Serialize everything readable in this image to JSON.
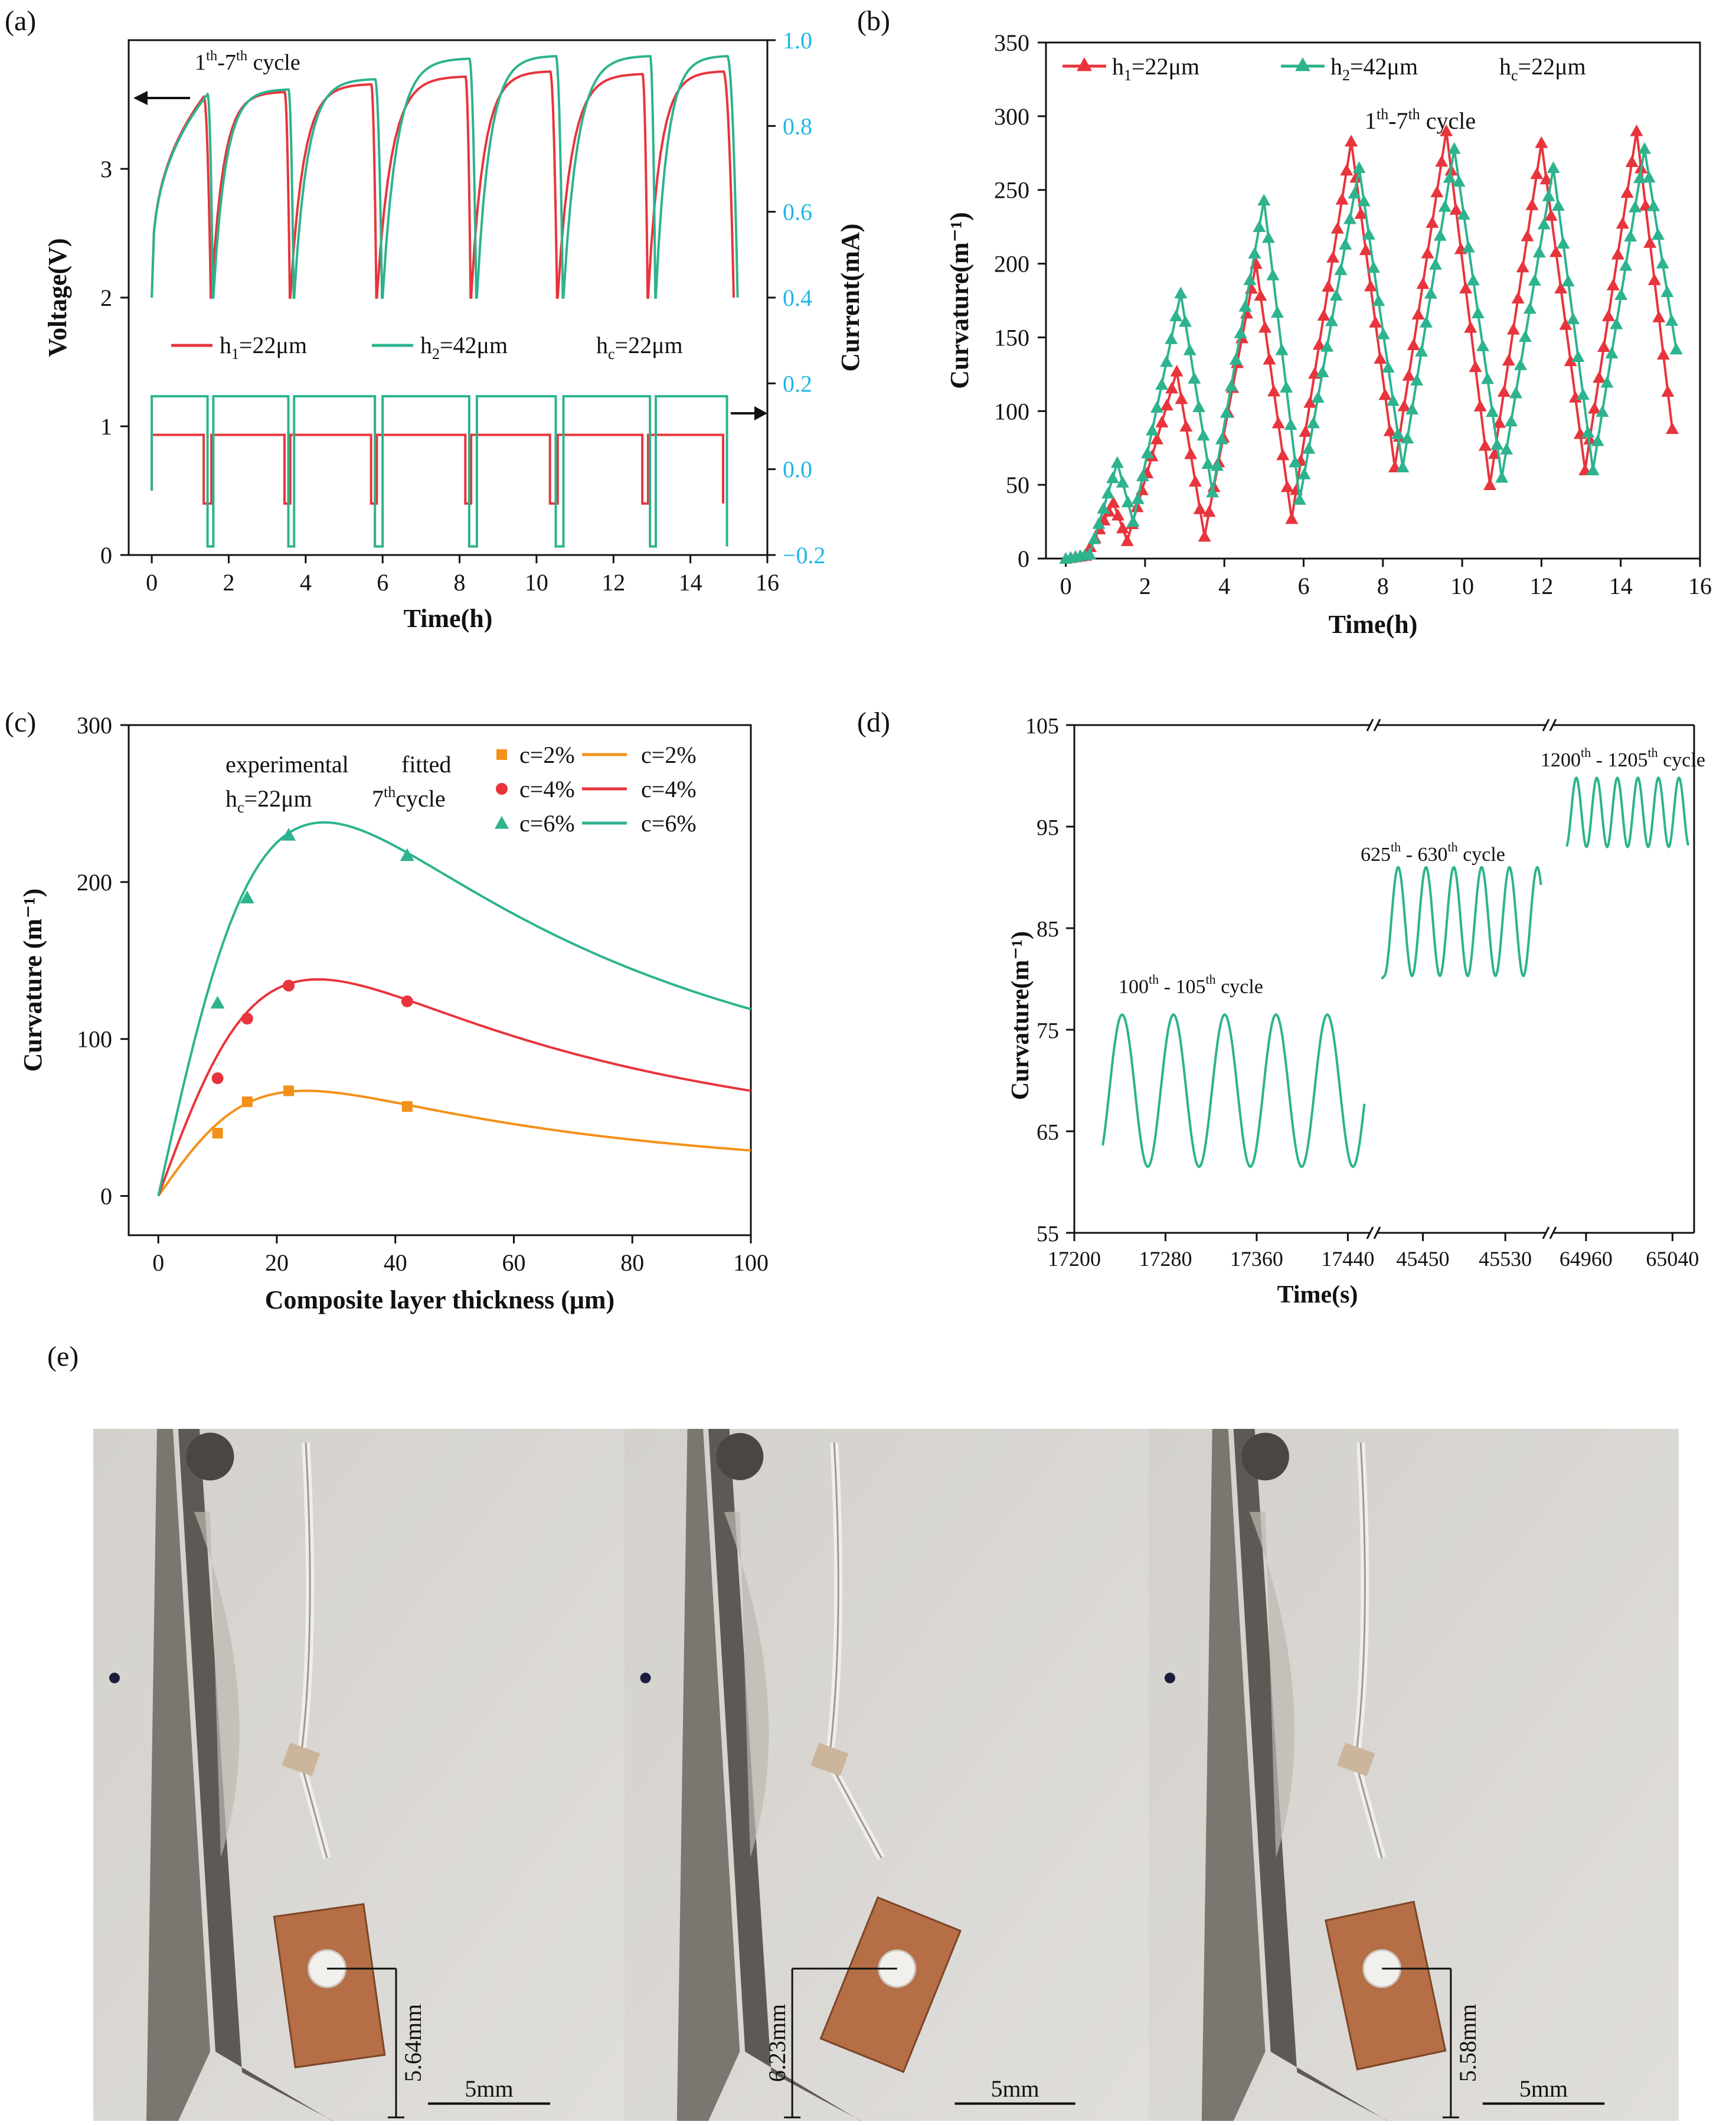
{
  "panel_labels": {
    "a": "(a)",
    "b": "(b)",
    "c": "(c)",
    "d": "(d)",
    "e": "(e)"
  },
  "colors": {
    "red": "#e8343c",
    "teal": "#2db38e",
    "orange": "#f39019",
    "cyan": "#1fb6e6",
    "black": "#111111",
    "photo_bg": "#d9d6d1",
    "copper": "#b56e45"
  },
  "chart_data": [
    {
      "id": "a",
      "type": "line",
      "xlabel": "Time(h)",
      "ylabel": "Voltage(V)",
      "y2label": "Current(mA)",
      "xlim": [
        -0.6,
        16
      ],
      "ylim": [
        0,
        4
      ],
      "y2lim": [
        -0.2,
        1.0
      ],
      "xticks": [
        0,
        2,
        4,
        6,
        8,
        10,
        12,
        14,
        16
      ],
      "yticks": [
        0,
        1,
        2,
        3
      ],
      "y2ticks": [
        "−0.2",
        "0.0",
        "0.2",
        "0.4",
        "0.6",
        "0.8",
        "1.0"
      ],
      "annotation": {
        "base": "1",
        "sup1": "th",
        "mid": "-7",
        "sup2": "th",
        "tail": " cycle"
      },
      "legend": [
        {
          "name": "h",
          "sub": "1",
          "rest": "=22μm",
          "color": "red"
        },
        {
          "name": "h",
          "sub": "2",
          "rest": "=42μm",
          "color": "teal"
        },
        {
          "name": "h",
          "sub": "c",
          "rest": "=22μm",
          "color": ""
        }
      ],
      "series": [
        {
          "name": "h1=22μm",
          "color": "red",
          "charge_starts": [
            0,
            1.55,
            3.6,
            5.85,
            8.3,
            10.55,
            12.9
          ],
          "charge_ends": [
            1.35,
            3.45,
            5.7,
            8.15,
            10.35,
            12.75,
            14.85
          ],
          "peak_v": [
            3.56,
            3.6,
            3.66,
            3.72,
            3.76,
            3.74,
            3.76
          ],
          "current_cycles": [
            [
              0,
              1.35,
              1.55
            ],
            [
              1.55,
              3.45,
              3.6
            ],
            [
              3.6,
              5.7,
              5.85
            ],
            [
              5.85,
              8.15,
              8.3
            ],
            [
              8.3,
              10.35,
              10.55
            ],
            [
              10.55,
              12.75,
              12.9
            ],
            [
              12.9,
              14.85,
              14.85
            ]
          ],
          "current_high_mA": 0.08,
          "current_low_mA": -0.08
        },
        {
          "name": "h2=42μm",
          "color": "teal",
          "charge_starts": [
            0,
            1.6,
            3.7,
            6.0,
            8.45,
            10.7,
            13.1
          ],
          "charge_ends": [
            1.45,
            3.55,
            5.8,
            8.25,
            10.5,
            12.95,
            14.95
          ],
          "peak_v": [
            3.58,
            3.62,
            3.7,
            3.86,
            3.88,
            3.88,
            3.88
          ],
          "current_cycles": [
            [
              0,
              1.45,
              1.6
            ],
            [
              1.6,
              3.55,
              3.7
            ],
            [
              3.7,
              5.8,
              6.0
            ],
            [
              6.0,
              8.25,
              8.45
            ],
            [
              8.45,
              10.5,
              10.7
            ],
            [
              10.7,
              12.95,
              13.1
            ],
            [
              13.1,
              14.95,
              14.95
            ]
          ],
          "current_high_mA": 0.17,
          "current_low_mA": -0.18
        }
      ]
    },
    {
      "id": "b",
      "type": "line",
      "xlabel": "Time(h)",
      "ylabel": "Curvature(m⁻¹)",
      "xlim": [
        -0.5,
        16
      ],
      "ylim": [
        0,
        350
      ],
      "xticks": [
        0,
        2,
        4,
        6,
        8,
        10,
        12,
        14,
        16
      ],
      "yticks": [
        0,
        50,
        100,
        150,
        200,
        250,
        300,
        350
      ],
      "annotation": {
        "base": "1",
        "sup1": "th",
        "mid": "-7",
        "sup2": "th",
        "tail": " cycle"
      },
      "legend": [
        {
          "name": "h",
          "sub": "1",
          "rest": "=22μm",
          "color": "red"
        },
        {
          "name": "h",
          "sub": "2",
          "rest": "=42μm",
          "color": "teal"
        },
        {
          "name": "h",
          "sub": "c",
          "rest": "=22μm",
          "color": ""
        }
      ],
      "series": [
        {
          "name": "h1=22μm",
          "color": "red",
          "marker": "triangle",
          "points": [
            [
              0,
              0
            ],
            [
              0.5,
              2
            ],
            [
              1.2,
              38
            ],
            [
              1.55,
              12
            ],
            [
              2.8,
              127
            ],
            [
              3.5,
              15
            ],
            [
              4.8,
              200
            ],
            [
              5.7,
              27
            ],
            [
              7.2,
              283
            ],
            [
              8.3,
              62
            ],
            [
              9.6,
              290
            ],
            [
              10.7,
              50
            ],
            [
              12.0,
              282
            ],
            [
              13.1,
              60
            ],
            [
              14.4,
              290
            ],
            [
              15.3,
              88
            ]
          ]
        },
        {
          "name": "h2=42μm",
          "color": "teal",
          "marker": "triangle",
          "points": [
            [
              0,
              0
            ],
            [
              0.6,
              3
            ],
            [
              1.3,
              65
            ],
            [
              1.7,
              25
            ],
            [
              2.9,
              180
            ],
            [
              3.7,
              45
            ],
            [
              5.0,
              243
            ],
            [
              5.9,
              40
            ],
            [
              7.4,
              265
            ],
            [
              8.5,
              62
            ],
            [
              9.8,
              278
            ],
            [
              11.0,
              55
            ],
            [
              12.3,
              265
            ],
            [
              13.3,
              60
            ],
            [
              14.6,
              278
            ],
            [
              15.4,
              142
            ]
          ]
        }
      ]
    },
    {
      "id": "c",
      "type": "line+scatter",
      "xlabel": "Composite layer thickness (μm)",
      "ylabel": "Curvature (m⁻¹)",
      "xlim": [
        -5,
        100
      ],
      "ylim": [
        -25,
        300
      ],
      "xticks": [
        0,
        20,
        40,
        60,
        80,
        100
      ],
      "yticks": [
        0,
        100,
        200,
        300
      ],
      "legend_headers": {
        "experimental": "experimental",
        "fitted": "fitted"
      },
      "annotation": {
        "hc": "h",
        "hc_sub": "c",
        "hc_rest": "=22μm",
        "cycle": "7",
        "cycle_sup": "th",
        "cycle_tail": "cycle"
      },
      "legend": [
        {
          "label": "c=2%",
          "color": "orange",
          "marker": "square"
        },
        {
          "label": "c=4%",
          "color": "red",
          "marker": "circle"
        },
        {
          "label": "c=6%",
          "color": "teal",
          "marker": "triangle"
        }
      ],
      "series": [
        {
          "name": "c=2%",
          "color": "orange",
          "marker": "square",
          "experimental": [
            [
              10,
              40
            ],
            [
              15,
              60
            ],
            [
              22,
              67
            ],
            [
              42,
              57
            ]
          ],
          "fit_peak": [
            25,
            67
          ],
          "fit_end": 29
        },
        {
          "name": "c=4%",
          "color": "red",
          "marker": "circle",
          "experimental": [
            [
              10,
              75
            ],
            [
              15,
              113
            ],
            [
              22,
              134
            ],
            [
              42,
              124
            ]
          ],
          "fit_peak": [
            27,
            138
          ],
          "fit_end": 67
        },
        {
          "name": "c=6%",
          "color": "teal",
          "marker": "triangle",
          "experimental": [
            [
              10,
              123
            ],
            [
              15,
              190
            ],
            [
              22,
              230
            ],
            [
              42,
              217
            ]
          ],
          "fit_peak": [
            28,
            238
          ],
          "fit_end": 119
        }
      ]
    },
    {
      "id": "d",
      "type": "line",
      "xlabel": "Time(s)",
      "ylabel": "Curvature(m⁻¹)",
      "ylim": [
        55,
        105
      ],
      "yticks": [
        55,
        65,
        75,
        85,
        95,
        105
      ],
      "segments": [
        {
          "xlim": [
            17200,
            17460
          ],
          "xticks": [
            17200,
            17280,
            17360,
            17440
          ],
          "label": {
            "a": "100",
            "as": "th",
            "b": " - 105",
            "bs": "th",
            "c": " cycle"
          },
          "t_start": 17225,
          "t_end": 17455,
          "period": 45,
          "first_peak": 17242,
          "min": 61.5,
          "max": 76.5,
          "start_v": 61
        },
        {
          "xlim": [
            45405,
            45570
          ],
          "xticks": [
            45450,
            45530
          ],
          "label": {
            "a": "625",
            "as": "th",
            "b": " - 630",
            "bs": "th",
            "c": " cycle"
          },
          "t_start": 45410,
          "t_end": 45565,
          "period": 27,
          "first_peak": 45426,
          "min": 80.3,
          "max": 91.0,
          "start_v": 80
        },
        {
          "xlim": [
            64930,
            65060
          ],
          "xticks": [
            64960,
            65040
          ],
          "label": {
            "a": "1200",
            "as": "th",
            "b": " - 1205",
            "bs": "th",
            "c": " cycle"
          },
          "t_start": 64942,
          "t_end": 65055,
          "period": 19,
          "first_peak": 64951,
          "min": 93.0,
          "max": 99.8,
          "start_v": 92.5
        }
      ]
    }
  ],
  "photos": [
    {
      "dimension": "5.64mm",
      "scale": "5mm"
    },
    {
      "dimension": "6.23mm",
      "scale": "5mm"
    },
    {
      "dimension": "5.58mm",
      "scale": "5mm"
    }
  ]
}
